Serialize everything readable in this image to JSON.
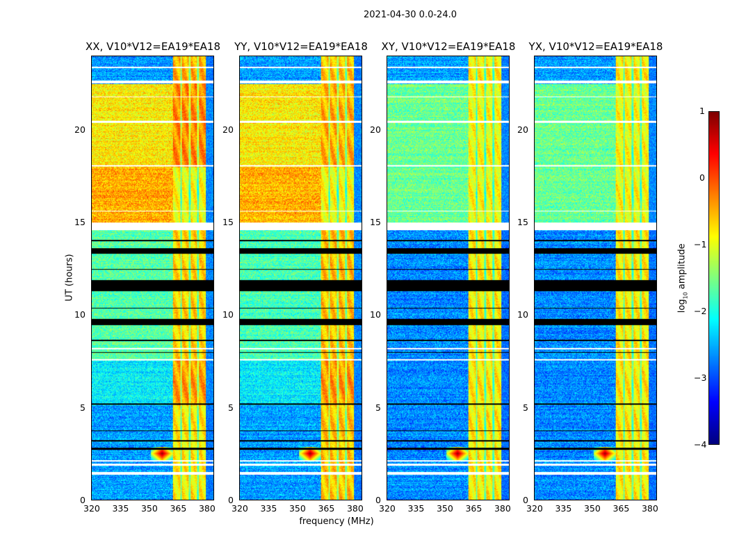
{
  "chart_data": {
    "type": "heatmap",
    "title": "2021-04-30 0.0-24.0",
    "xlabel": "frequency (MHz)",
    "ylabel": "UT (hours)",
    "xlim": [
      320,
      384
    ],
    "ylim": [
      0,
      24
    ],
    "xticks": [
      320,
      335,
      350,
      365,
      380
    ],
    "yticks": [
      0,
      5,
      10,
      15,
      20
    ],
    "colormap": "jet",
    "colorbar": {
      "label_prefix": "log",
      "label_sub": "10",
      "label_suffix": " amplitude",
      "range": [
        -4,
        1
      ],
      "ticks": [
        1,
        0,
        -1,
        -2,
        -3,
        -4
      ]
    },
    "band": {
      "freq_range": [
        362.5,
        380
      ],
      "gaps_mhz": [
        367,
        371.5,
        376
      ]
    },
    "rfi_spike": {
      "freq_mhz": 357,
      "hour": 2.5,
      "value": 0.9
    },
    "flagged_hours_white": [
      [
        1.35,
        1.5
      ],
      [
        1.85,
        1.95
      ],
      [
        2.05,
        2.15
      ],
      [
        14.65,
        15.0
      ],
      [
        22.55,
        22.7
      ],
      [
        23.35,
        23.45
      ],
      [
        20.4,
        20.5
      ],
      [
        18.05,
        18.1
      ],
      [
        15.6,
        15.63
      ],
      [
        16.3,
        16.33
      ],
      [
        21.8,
        21.83
      ],
      [
        7.55,
        7.62
      ],
      [
        8.15,
        8.2
      ]
    ],
    "flagged_hours_black": [
      [
        2.7,
        2.8
      ],
      [
        3.15,
        3.22
      ],
      [
        3.7,
        3.75
      ],
      [
        5.15,
        5.2
      ],
      [
        7.95,
        8.0
      ],
      [
        8.6,
        8.65
      ],
      [
        9.45,
        9.8
      ],
      [
        10.35,
        10.4
      ],
      [
        11.3,
        11.9
      ],
      [
        12.45,
        12.5
      ],
      [
        13.3,
        13.6
      ],
      [
        14.0,
        14.05
      ]
    ],
    "panels": [
      {
        "title": "XX, V10*V12=EA19*EA18",
        "segments": [
          {
            "hours": [
              0,
              5.1
            ],
            "background": -2.6,
            "band": -0.8
          },
          {
            "hours": [
              5.1,
              7.6
            ],
            "background": -2.2,
            "band": -0.4
          },
          {
            "hours": [
              7.6,
              14.6
            ],
            "background": -1.7,
            "band": -0.7
          },
          {
            "hours": [
              15,
              18
            ],
            "background": -0.45,
            "band": -0.9
          },
          {
            "hours": [
              18,
              22.5
            ],
            "background": -0.8,
            "band": -0.3
          },
          {
            "hours": [
              22.5,
              24
            ],
            "background": -2.6,
            "band": -0.5
          }
        ]
      },
      {
        "title": "YY, V10*V12=EA19*EA18",
        "segments": [
          {
            "hours": [
              0,
              5.1
            ],
            "background": -2.6,
            "band": -0.6
          },
          {
            "hours": [
              5.1,
              7.6
            ],
            "background": -2.2,
            "band": -0.4
          },
          {
            "hours": [
              7.6,
              14.6
            ],
            "background": -1.8,
            "band": -0.6
          },
          {
            "hours": [
              15,
              18
            ],
            "background": -0.5,
            "band": -0.9
          },
          {
            "hours": [
              18,
              22.5
            ],
            "background": -0.8,
            "band": -0.5
          },
          {
            "hours": [
              22.5,
              24
            ],
            "background": -2.6,
            "band": -0.6
          }
        ]
      },
      {
        "title": "XY, V10*V12=EA19*EA18",
        "segments": [
          {
            "hours": [
              0,
              14.6
            ],
            "background": -2.7,
            "band": -0.8
          },
          {
            "hours": [
              15,
              22.5
            ],
            "background": -1.6,
            "band": -0.9
          },
          {
            "hours": [
              22.5,
              24
            ],
            "background": -2.6,
            "band": -0.8
          }
        ]
      },
      {
        "title": "YX, V10*V12=EA19*EA18",
        "segments": [
          {
            "hours": [
              0,
              14.6
            ],
            "background": -2.7,
            "band": -0.8
          },
          {
            "hours": [
              15,
              22.5
            ],
            "background": -1.6,
            "band": -0.9
          },
          {
            "hours": [
              22.5,
              24
            ],
            "background": -2.6,
            "band": -0.8
          }
        ]
      }
    ]
  }
}
